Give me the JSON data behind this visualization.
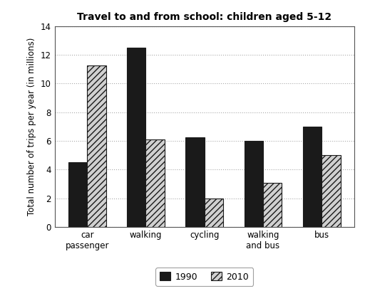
{
  "title": "Travel to and from school: children aged 5-12",
  "ylabel": "Total number of trips per year (in millions)",
  "categories": [
    "car\npassenger",
    "walking",
    "cycling",
    "walking\nand bus",
    "bus"
  ],
  "values_1990": [
    4.5,
    12.5,
    6.25,
    6.0,
    7.0
  ],
  "values_2010": [
    11.25,
    6.1,
    2.0,
    3.1,
    5.0
  ],
  "color_1990": "#1a1a1a",
  "hatch_2010": "////",
  "color_2010_face": "#d0d0d0",
  "color_2010_edge": "#1a1a1a",
  "ylim": [
    0,
    14
  ],
  "yticks": [
    0,
    2,
    4,
    6,
    8,
    10,
    12,
    14
  ],
  "legend_labels": [
    "1990",
    "2010"
  ],
  "bar_width": 0.32,
  "title_fontsize": 10,
  "label_fontsize": 8.5,
  "tick_fontsize": 8.5,
  "legend_fontsize": 9,
  "background_color": "#ffffff",
  "grid_color": "#aaaaaa"
}
